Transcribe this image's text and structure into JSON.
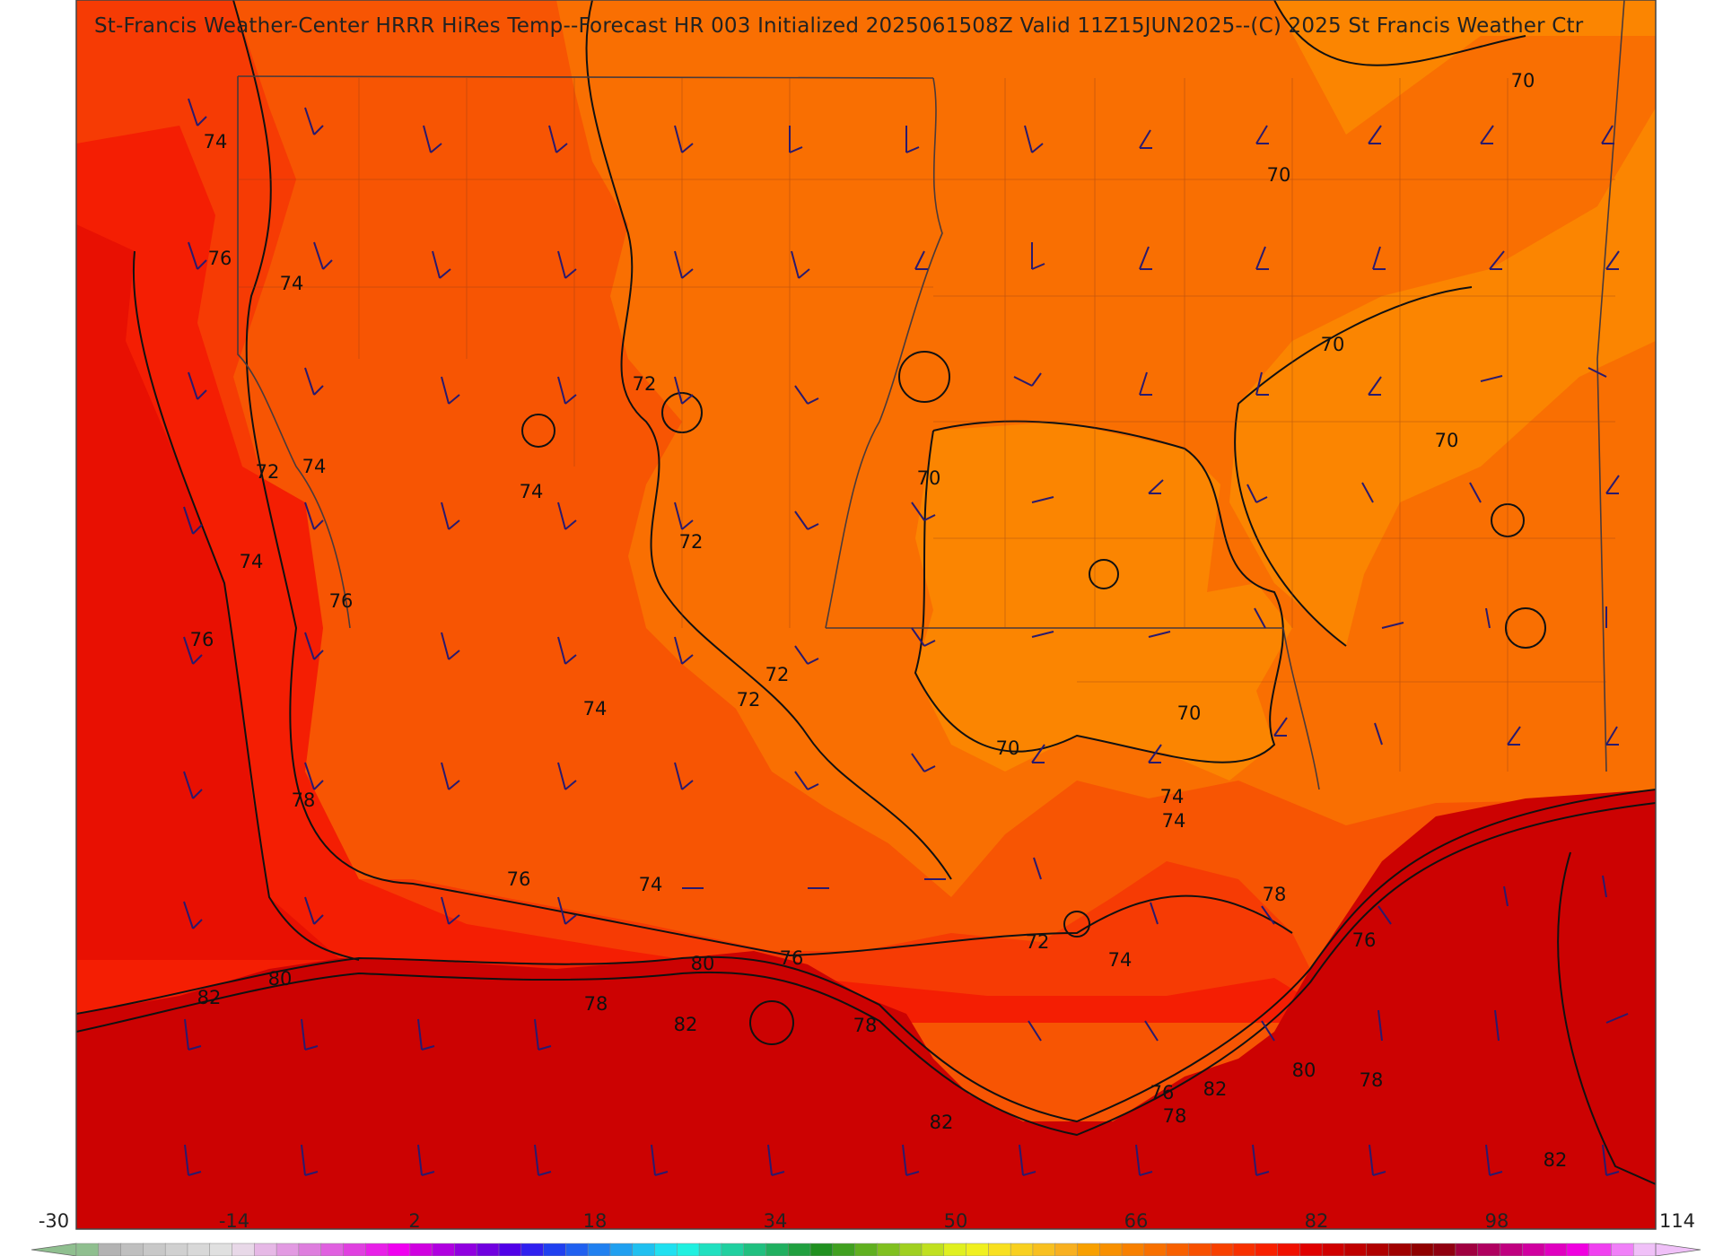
{
  "title": "St-Francis Weather-Center HRRR HiRes Temp--Forecast HR 003 Initialized 2025061508Z Valid 11Z15JUN2025--(C) 2025 St Francis Weather Ctr",
  "contour_labels": [
    "74",
    "76",
    "74",
    "72",
    "74",
    "74",
    "76",
    "76",
    "72",
    "74",
    "72",
    "72",
    "74",
    "70",
    "70",
    "70",
    "70",
    "70",
    "70",
    "70",
    "72",
    "74",
    "78",
    "76",
    "74",
    "72",
    "74",
    "74",
    "78",
    "76",
    "80",
    "82",
    "80",
    "78",
    "82",
    "76",
    "78",
    "82",
    "76",
    "78",
    "82",
    "80",
    "78",
    "82"
  ],
  "colorbar": {
    "min": -30,
    "max": 114,
    "tick_labels": [
      "-30",
      "-14",
      "2",
      "18",
      "34",
      "50",
      "66",
      "82",
      "98",
      "114"
    ],
    "colors": [
      "#8fbf8f",
      "#b3b3b3",
      "#bfbfbf",
      "#c8c8c8",
      "#d0d0d0",
      "#d8d8d8",
      "#e0e0e0",
      "#e8d8e8",
      "#e6b8e6",
      "#e29ae2",
      "#de7ede",
      "#e060e0",
      "#e040e0",
      "#e820e8",
      "#f000f0",
      "#d000e0",
      "#b000e0",
      "#9000e0",
      "#7000e0",
      "#5000e8",
      "#3020f0",
      "#2040f0",
      "#2060f0",
      "#2080f0",
      "#20a0f0",
      "#20c0f0",
      "#20e0f0",
      "#20f0e0",
      "#20e0c0",
      "#20d0a0",
      "#20c080",
      "#20b060",
      "#20a040",
      "#209020",
      "#40a020",
      "#60b020",
      "#80c020",
      "#a0d020",
      "#c0e020",
      "#e0f020",
      "#f0f020",
      "#f8e020",
      "#f8d020",
      "#f8c020",
      "#f8b020",
      "#f8a000",
      "#f89000",
      "#f88000",
      "#f87000",
      "#f86000",
      "#f85000",
      "#f84000",
      "#f83000",
      "#f82000",
      "#f01000",
      "#e00000",
      "#d00000",
      "#c00000",
      "#b00000",
      "#a00000",
      "#900000",
      "#900010",
      "#a00040",
      "#b00060",
      "#c00080",
      "#d000a0",
      "#e000c0",
      "#f000e0",
      "#f040f0",
      "#f080f8",
      "#f0c0f8"
    ]
  },
  "colors": {
    "temp_68_70": "#fb8501",
    "temp_70_72": "#f96f02",
    "temp_72_74": "#f75503",
    "temp_74_76": "#f63b04",
    "temp_76_78": "#f41e03",
    "temp_78_80": "#e81002",
    "temp_80_82": "#d40502",
    "temp_82_84": "#cc0202",
    "barb": "#2a1a6e",
    "contour": "#111111",
    "boundary": "#4a3a3a"
  }
}
